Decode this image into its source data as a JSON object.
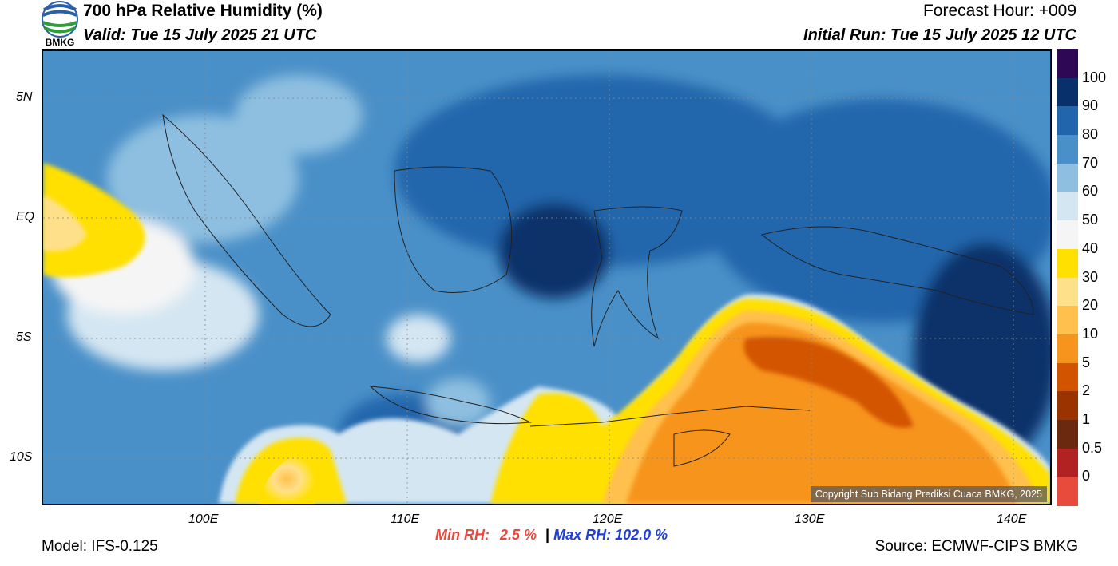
{
  "header": {
    "title": "700 hPa Relative Humidity (%)",
    "valid": "Valid: Tue 15 July 2025 21 UTC",
    "forecast_hour": "Forecast Hour: +009",
    "initial_run": "Initial Run: Tue 15 July 2025 12 UTC"
  },
  "logo": {
    "text": "BMKG"
  },
  "axes": {
    "lat_ticks": [
      "5N",
      "EQ",
      "5S",
      "10S"
    ],
    "lon_ticks": [
      "100E",
      "110E",
      "120E",
      "130E",
      "140E"
    ]
  },
  "colorbar": {
    "labels": [
      "100",
      "90",
      "80",
      "70",
      "60",
      "50",
      "40",
      "30",
      "20",
      "10",
      "5",
      "2",
      "1",
      "0.5",
      "0"
    ],
    "colors": [
      "#2e0854",
      "#08306b",
      "#2166ac",
      "#4a90c8",
      "#8ebfe0",
      "#d4e6f2",
      "#f5f5f5",
      "#ffe000",
      "#ffe08a",
      "#ffc04d",
      "#f7941d",
      "#d35400",
      "#993300",
      "#6b2a0f",
      "#b22222",
      "#e84a3c"
    ]
  },
  "stats": {
    "min_label": "Min RH:",
    "min_value": "2.5 %",
    "separator": "|",
    "max_label": "Max RH:",
    "max_value": "102.0 %"
  },
  "footer": {
    "model": "Model: IFS-0.125",
    "source": "Source: ECMWF-CIPS BMKG",
    "copyright": "Copyright Sub Bidang Prediksi Cuaca BMKG, 2025"
  }
}
